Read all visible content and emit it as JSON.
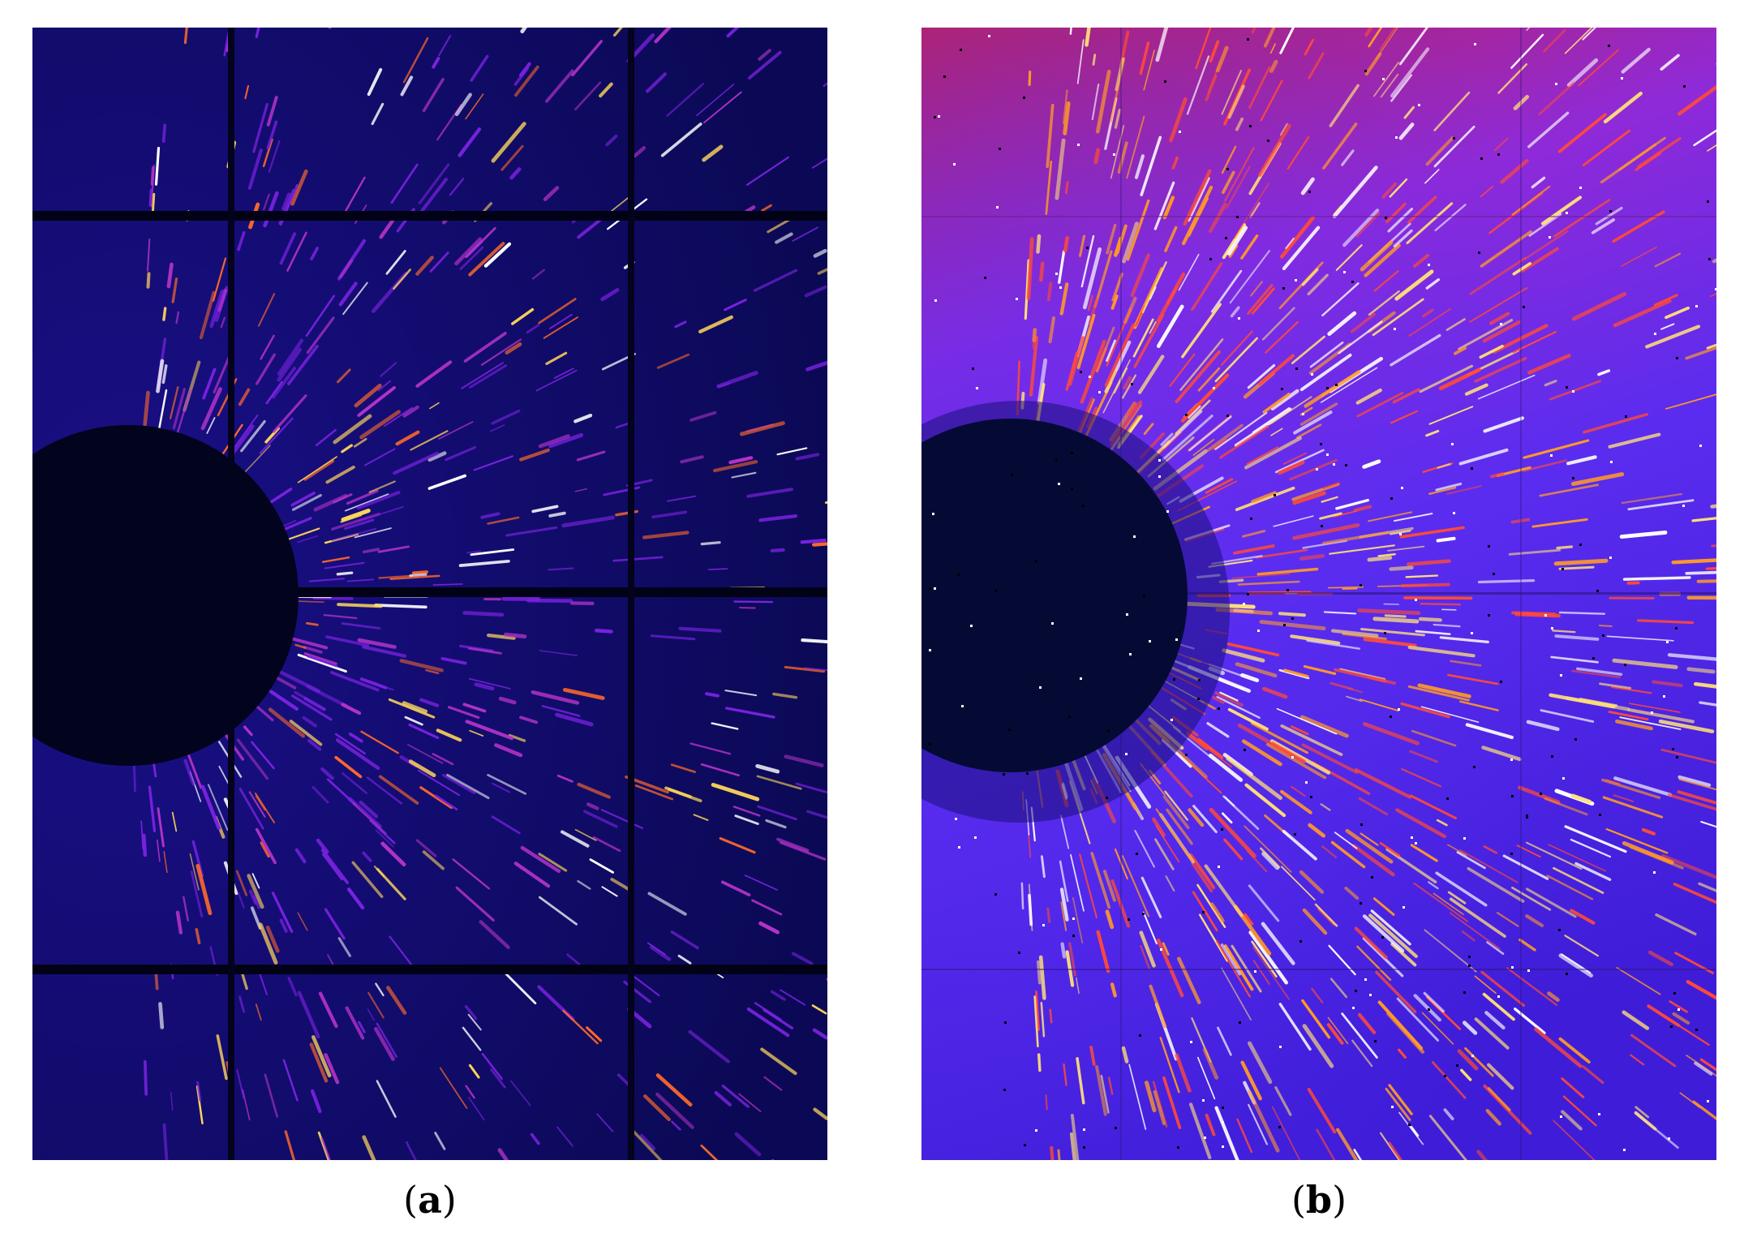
{
  "figure": {
    "panels": [
      {
        "id": "a",
        "label": "a",
        "colors": {
          "background": "#0d0a5c",
          "beam_stop": "#02031c",
          "streak": [
            "#7a22e0",
            "#b533c9",
            "#ff6a2a",
            "#ffd75a",
            "#ffffff"
          ]
        }
      },
      {
        "id": "b",
        "label": "b",
        "colors": {
          "background_top": "#c4204f",
          "background_mid": "#6a2ef2",
          "background_bottom": "#3f1dd8",
          "beam_stop": "#050a35",
          "streak": [
            "#ff4a3a",
            "#ff9a2a",
            "#ffe07a",
            "#ffffff"
          ]
        }
      }
    ]
  }
}
